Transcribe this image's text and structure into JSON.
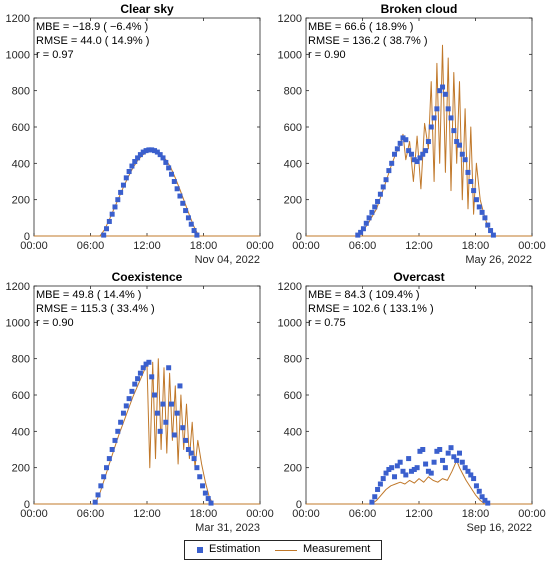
{
  "legend": {
    "estimation": "Estimation",
    "measurement": "Measurement"
  },
  "colors": {
    "estimation": "#3a5fcd",
    "estimation_halo": "#a86fd6",
    "measurement": "#c0782a",
    "measurement_bright": "#e0501e",
    "axis": "#262626"
  },
  "chart_data": [
    {
      "type": "scatter",
      "title": "Clear sky",
      "date": "Nov 04, 2022",
      "stats": [
        "MBE = −18.9 ( −6.4% )",
        "RMSE = 44.0 ( 14.9% )",
        "r = 0.97"
      ],
      "xlabel": "",
      "ylabel": "",
      "xlim": [
        0,
        24
      ],
      "ylim": [
        0,
        1200
      ],
      "xtick_labels": [
        "00:00",
        "06:00",
        "12:00",
        "18:00",
        "00:00"
      ],
      "ytick_labels": [
        "0",
        "200",
        "400",
        "600",
        "800",
        "1000",
        "1200"
      ],
      "series": [
        {
          "name": "Estimation",
          "style": "markers",
          "x": [
            7.4,
            7.7,
            8.0,
            8.3,
            8.6,
            8.9,
            9.2,
            9.5,
            9.8,
            10.1,
            10.4,
            10.7,
            11.0,
            11.3,
            11.6,
            11.9,
            12.2,
            12.5,
            12.8,
            13.1,
            13.4,
            13.7,
            14.0,
            14.3,
            14.6,
            14.9,
            15.2,
            15.5,
            15.8,
            16.1,
            16.4,
            16.7,
            17.0,
            17.3
          ],
          "values": [
            5,
            40,
            80,
            120,
            160,
            200,
            240,
            280,
            320,
            355,
            385,
            410,
            430,
            448,
            462,
            470,
            474,
            474,
            470,
            462,
            448,
            430,
            405,
            375,
            340,
            300,
            260,
            220,
            180,
            140,
            100,
            65,
            30,
            5
          ]
        },
        {
          "name": "Measurement",
          "style": "line",
          "x": [
            7.0,
            7.5,
            8.0,
            8.5,
            9.0,
            9.5,
            10.0,
            10.5,
            11.0,
            11.5,
            12.0,
            12.5,
            13.0,
            13.5,
            14.0,
            14.5,
            15.0,
            15.5,
            16.0,
            16.5,
            17.0,
            17.5
          ],
          "values": [
            0,
            35,
            90,
            150,
            210,
            270,
            325,
            375,
            415,
            445,
            462,
            470,
            465,
            450,
            420,
            380,
            320,
            255,
            185,
            115,
            50,
            0
          ]
        }
      ]
    },
    {
      "type": "scatter",
      "title": "Broken cloud",
      "date": "May 26, 2022",
      "stats": [
        "MBE = 66.6 ( 18.9% )",
        "RMSE = 136.2 ( 38.7% )",
        "r = 0.90"
      ],
      "xlabel": "",
      "ylabel": "",
      "xlim": [
        0,
        24
      ],
      "ylim": [
        0,
        1200
      ],
      "xtick_labels": [
        "00:00",
        "06:00",
        "12:00",
        "18:00",
        "00:00"
      ],
      "ytick_labels": [
        "0",
        "200",
        "400",
        "600",
        "800",
        "1000",
        "1200"
      ],
      "series": [
        {
          "name": "Estimation",
          "style": "markers",
          "x": [
            5.5,
            5.8,
            6.1,
            6.4,
            6.7,
            7.0,
            7.3,
            7.6,
            7.9,
            8.2,
            8.5,
            8.8,
            9.1,
            9.4,
            9.7,
            10.0,
            10.3,
            10.6,
            10.9,
            11.2,
            11.5,
            11.8,
            12.1,
            12.4,
            12.7,
            13.0,
            13.3,
            13.6,
            13.9,
            14.2,
            14.5,
            14.8,
            15.1,
            15.4,
            15.7,
            16.0,
            16.3,
            16.6,
            16.9,
            17.2,
            17.5,
            17.8,
            18.1,
            18.4,
            18.7,
            19.0,
            19.3,
            19.6,
            19.9
          ],
          "values": [
            5,
            20,
            40,
            70,
            100,
            130,
            160,
            190,
            230,
            270,
            310,
            360,
            400,
            450,
            480,
            510,
            540,
            530,
            470,
            450,
            420,
            410,
            430,
            450,
            470,
            520,
            600,
            650,
            700,
            800,
            820,
            780,
            700,
            650,
            580,
            520,
            500,
            450,
            420,
            350,
            300,
            250,
            200,
            160,
            130,
            100,
            60,
            30,
            5
          ]
        },
        {
          "name": "Measurement",
          "style": "line",
          "x": [
            5.5,
            6.5,
            7.5,
            8.5,
            9.0,
            9.5,
            10.0,
            10.3,
            10.6,
            11.0,
            11.4,
            11.8,
            12.2,
            12.6,
            13.0,
            13.3,
            13.6,
            13.9,
            14.2,
            14.5,
            14.8,
            15.1,
            15.4,
            15.7,
            16.0,
            16.3,
            16.6,
            16.9,
            17.2,
            17.5,
            17.8,
            18.1,
            18.5,
            19.0,
            19.5,
            20.0
          ],
          "values": [
            0,
            60,
            150,
            300,
            380,
            450,
            500,
            560,
            420,
            520,
            300,
            550,
            260,
            620,
            480,
            850,
            300,
            950,
            400,
            1050,
            350,
            980,
            250,
            900,
            400,
            850,
            200,
            700,
            150,
            600,
            120,
            400,
            200,
            100,
            30,
            0
          ]
        }
      ]
    },
    {
      "type": "scatter",
      "title": "Coexistence",
      "date": "Mar 31, 2023",
      "stats": [
        "MBE = 49.8 ( 14.4% )",
        "RMSE = 115.3 ( 33.4% )",
        "r = 0.90"
      ],
      "xlabel": "",
      "ylabel": "",
      "xlim": [
        0,
        24
      ],
      "ylim": [
        0,
        1200
      ],
      "xtick_labels": [
        "00:00",
        "06:00",
        "12:00",
        "18:00",
        "00:00"
      ],
      "ytick_labels": [
        "0",
        "200",
        "400",
        "600",
        "800",
        "1000",
        "1200"
      ],
      "series": [
        {
          "name": "Estimation",
          "style": "markers",
          "x": [
            6.5,
            6.8,
            7.1,
            7.4,
            7.7,
            8.0,
            8.3,
            8.6,
            8.9,
            9.2,
            9.5,
            9.8,
            10.1,
            10.4,
            10.7,
            11.0,
            11.3,
            11.6,
            11.9,
            12.2,
            12.5,
            12.8,
            13.1,
            13.4,
            13.7,
            14.0,
            14.3,
            14.6,
            14.9,
            15.2,
            15.5,
            15.8,
            16.1,
            16.4,
            16.7,
            17.0,
            17.3,
            17.6,
            17.9,
            18.2,
            18.5,
            18.8
          ],
          "values": [
            10,
            50,
            100,
            150,
            200,
            250,
            300,
            350,
            400,
            450,
            500,
            540,
            580,
            620,
            660,
            690,
            720,
            750,
            770,
            780,
            700,
            600,
            500,
            400,
            550,
            450,
            750,
            550,
            380,
            500,
            650,
            420,
            350,
            300,
            280,
            250,
            200,
            150,
            100,
            60,
            30,
            5
          ]
        },
        {
          "name": "Measurement",
          "style": "line",
          "x": [
            6.5,
            7.0,
            7.5,
            8.0,
            8.5,
            9.0,
            9.5,
            10.0,
            10.5,
            11.0,
            11.5,
            12.0,
            12.3,
            12.6,
            12.9,
            13.2,
            13.5,
            13.8,
            14.1,
            14.4,
            14.7,
            15.0,
            15.3,
            15.6,
            15.9,
            16.2,
            16.5,
            16.8,
            17.1,
            17.4,
            17.8,
            18.2,
            18.6,
            19.0
          ],
          "values": [
            0,
            60,
            140,
            220,
            300,
            380,
            450,
            520,
            590,
            650,
            710,
            770,
            200,
            780,
            250,
            800,
            300,
            750,
            280,
            720,
            350,
            650,
            220,
            600,
            300,
            550,
            250,
            450,
            200,
            350,
            220,
            120,
            40,
            0
          ]
        }
      ]
    },
    {
      "type": "scatter",
      "title": "Overcast",
      "date": "Sep 16, 2022",
      "stats": [
        "MBE = 84.3 ( 109.4% )",
        "RMSE = 102.6 ( 133.1% )",
        "r = 0.75"
      ],
      "xlabel": "",
      "ylabel": "",
      "xlim": [
        0,
        24
      ],
      "ylim": [
        0,
        1200
      ],
      "xtick_labels": [
        "00:00",
        "06:00",
        "12:00",
        "18:00",
        "00:00"
      ],
      "ytick_labels": [
        "0",
        "200",
        "400",
        "600",
        "800",
        "1000",
        "1200"
      ],
      "series": [
        {
          "name": "Estimation",
          "style": "markers",
          "x": [
            7.0,
            7.3,
            7.6,
            7.9,
            8.2,
            8.5,
            8.8,
            9.1,
            9.4,
            9.7,
            10.0,
            10.3,
            10.6,
            10.9,
            11.2,
            11.5,
            11.8,
            12.1,
            12.4,
            12.7,
            13.0,
            13.3,
            13.6,
            13.9,
            14.2,
            14.5,
            14.8,
            15.1,
            15.4,
            15.7,
            16.0,
            16.3,
            16.6,
            16.9,
            17.2,
            17.5,
            17.8,
            18.1,
            18.4,
            18.7,
            19.0,
            19.3
          ],
          "values": [
            10,
            40,
            80,
            110,
            140,
            170,
            190,
            200,
            150,
            210,
            230,
            180,
            160,
            250,
            180,
            190,
            200,
            290,
            300,
            220,
            180,
            170,
            230,
            290,
            300,
            240,
            200,
            280,
            310,
            260,
            240,
            280,
            230,
            200,
            180,
            160,
            140,
            100,
            70,
            40,
            20,
            5
          ]
        },
        {
          "name": "Measurement",
          "style": "line",
          "x": [
            7.0,
            7.5,
            8.0,
            8.5,
            9.0,
            9.5,
            10.0,
            10.5,
            11.0,
            11.5,
            12.0,
            12.5,
            13.0,
            13.5,
            14.0,
            14.5,
            15.0,
            15.5,
            16.0,
            16.3,
            16.6,
            17.0,
            17.5,
            18.0,
            18.5,
            19.0
          ],
          "values": [
            0,
            20,
            50,
            80,
            100,
            110,
            120,
            110,
            130,
            115,
            140,
            120,
            150,
            130,
            120,
            140,
            130,
            180,
            240,
            200,
            170,
            130,
            90,
            50,
            20,
            0
          ]
        }
      ]
    }
  ]
}
